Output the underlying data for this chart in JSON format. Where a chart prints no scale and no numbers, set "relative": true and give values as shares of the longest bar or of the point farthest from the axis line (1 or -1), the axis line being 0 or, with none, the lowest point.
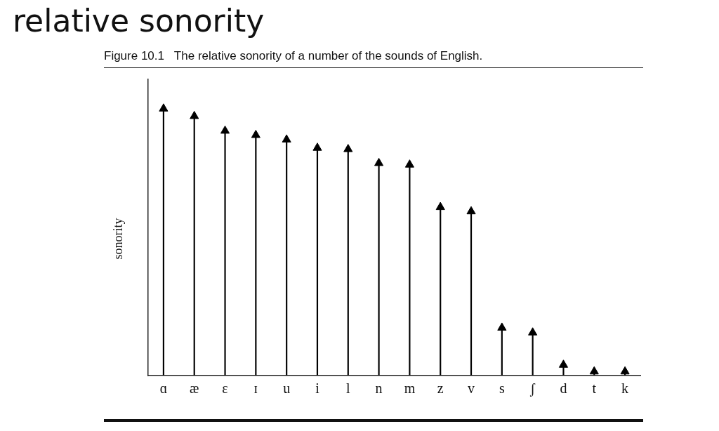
{
  "chart_data": {
    "type": "lollipop",
    "title": "relative sonority",
    "subtitle": "Figure 10.1   The relative sonority of a number of the sounds of English.",
    "ylabel": "sonority",
    "categories": [
      "ɑ",
      "æ",
      "ɛ",
      "ɪ",
      "u",
      "i",
      "l",
      "n",
      "m",
      "z",
      "v",
      "s",
      "ʃ",
      "d",
      "t",
      "k"
    ],
    "values": [
      1,
      0.972,
      0.917,
      0.901,
      0.884,
      0.853,
      0.848,
      0.796,
      0.79,
      0.631,
      0.615,
      0.179,
      0.161,
      0.04,
      0.015,
      0.015
    ],
    "color": "#000000",
    "relative": true,
    "marker": "triangle",
    "grid": false,
    "legend": false
  }
}
